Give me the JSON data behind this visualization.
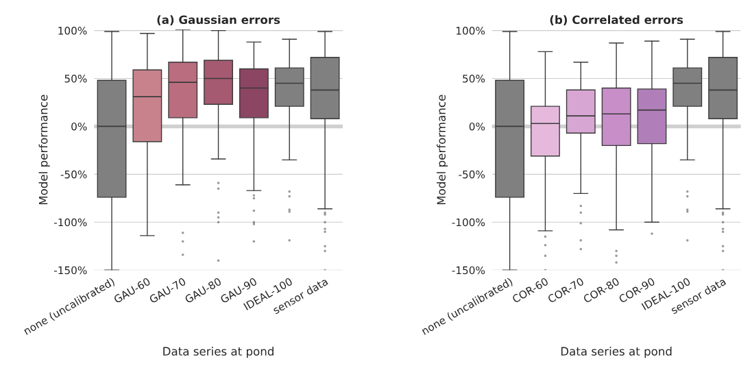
{
  "chart_data": [
    {
      "type": "box",
      "title": "(a) Gaussian errors",
      "xlabel": "Data series at pond",
      "ylabel": "Model performance",
      "categories": [
        "none (uncalibrated)",
        "GAU-60",
        "GAU-70",
        "GAU-80",
        "GAU-90",
        "IDEAL-100",
        "sensor data"
      ],
      "colors": [
        "#808080",
        "#c8828c",
        "#b96d7e",
        "#a65a72",
        "#8c4562",
        "#808080",
        "#808080"
      ],
      "boxes": [
        {
          "low": -150,
          "q1": -74,
          "median": 0,
          "q3": 48,
          "high": 99
        },
        {
          "low": -114,
          "q1": -16,
          "median": 31,
          "q3": 59,
          "high": 97
        },
        {
          "low": -61,
          "q1": 9,
          "median": 46,
          "q3": 67,
          "high": 101,
          "outliers": [
            -111,
            -120,
            -134
          ]
        },
        {
          "low": -34,
          "q1": 23,
          "median": 50,
          "q3": 69,
          "high": 100,
          "outliers": [
            -59,
            -65,
            -90,
            -95,
            -100,
            -140
          ]
        },
        {
          "low": -67,
          "q1": 9,
          "median": 40,
          "q3": 60,
          "high": 88,
          "outliers": [
            -72,
            -75,
            -88,
            -100,
            -102,
            -120
          ]
        },
        {
          "low": -35,
          "q1": 21,
          "median": 45,
          "q3": 61,
          "high": 91,
          "outliers": [
            -68,
            -73,
            -87,
            -89,
            -119
          ]
        },
        {
          "low": -86,
          "q1": 8,
          "median": 38,
          "q3": 72,
          "high": 99,
          "outliers": [
            -90,
            -92,
            -100,
            -107,
            -110,
            -125,
            -130,
            -150
          ]
        }
      ],
      "ylim": [
        -150,
        101
      ],
      "yticks": [
        {
          "value": -150,
          "label": "-150%"
        },
        {
          "value": -100,
          "label": "-100%"
        },
        {
          "value": -50,
          "label": "-50%"
        },
        {
          "value": 0,
          "label": "0%"
        },
        {
          "value": 50,
          "label": "50%"
        },
        {
          "value": 100,
          "label": "100%"
        }
      ],
      "grid": "y",
      "ref_lines": [
        {
          "axis": "y",
          "value": 0,
          "color": "#d0d0d0"
        }
      ]
    },
    {
      "type": "box",
      "title": "(b) Correlated errors",
      "xlabel": "Data series at pond",
      "ylabel": "Model performance",
      "categories": [
        "none (uncalibrated)",
        "COR-60",
        "COR-70",
        "COR-80",
        "COR-90",
        "IDEAL-100",
        "sensor data"
      ],
      "colors": [
        "#808080",
        "#e6b9dc",
        "#d8a6d3",
        "#c78ec8",
        "#b07fba",
        "#808080",
        "#808080"
      ],
      "boxes": [
        {
          "low": -150,
          "q1": -74,
          "median": 0,
          "q3": 48,
          "high": 99
        },
        {
          "low": -109,
          "q1": -31,
          "median": 3,
          "q3": 21,
          "high": 78,
          "outliers": [
            -115,
            -124,
            -135,
            -150
          ]
        },
        {
          "low": -70,
          "q1": -7,
          "median": 11,
          "q3": 38,
          "high": 67,
          "outliers": [
            -83,
            -90,
            -101,
            -119,
            -128
          ]
        },
        {
          "low": -108,
          "q1": -20,
          "median": 13,
          "q3": 40,
          "high": 87,
          "outliers": [
            -130,
            -135,
            -142
          ]
        },
        {
          "low": -100,
          "q1": -18,
          "median": 17,
          "q3": 39,
          "high": 89,
          "outliers": [
            -112
          ]
        },
        {
          "low": -35,
          "q1": 21,
          "median": 45,
          "q3": 61,
          "high": 91,
          "outliers": [
            -68,
            -73,
            -87,
            -89,
            -119
          ]
        },
        {
          "low": -86,
          "q1": 8,
          "median": 38,
          "q3": 72,
          "high": 99,
          "outliers": [
            -90,
            -92,
            -100,
            -107,
            -110,
            -125,
            -130,
            -150
          ]
        }
      ],
      "ylim": [
        -150,
        101
      ],
      "yticks": [
        {
          "value": -150,
          "label": "-150%"
        },
        {
          "value": -100,
          "label": "-100%"
        },
        {
          "value": -50,
          "label": "-50%"
        },
        {
          "value": 0,
          "label": "0%"
        },
        {
          "value": 50,
          "label": "50%"
        },
        {
          "value": 100,
          "label": "100%"
        }
      ],
      "grid": "y",
      "ref_lines": [
        {
          "axis": "y",
          "value": 0,
          "color": "#d0d0d0"
        }
      ]
    }
  ]
}
